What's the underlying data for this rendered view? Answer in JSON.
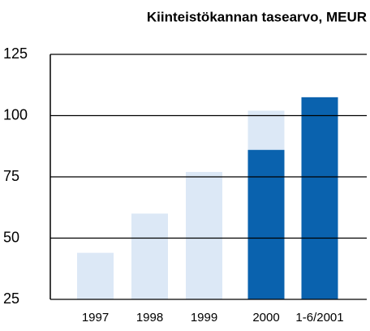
{
  "chart_data": {
    "type": "bar",
    "title": "Kiinteistökannan tasearvo, MEUR",
    "categories": [
      "1997",
      "1998",
      "1999",
      "2000",
      "1-6/2001"
    ],
    "series": [
      {
        "color": "#dce8f6",
        "values": [
          44,
          60,
          77,
          102,
          null
        ]
      },
      {
        "color": "#0a62ae",
        "values": [
          null,
          null,
          null,
          86,
          107.5
        ]
      }
    ],
    "ylim": [
      25,
      125
    ],
    "yticks": [
      25,
      50,
      75,
      100,
      125
    ],
    "grid": true
  }
}
